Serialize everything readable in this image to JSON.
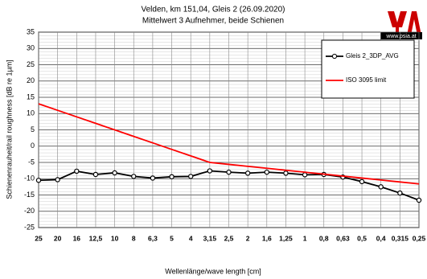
{
  "chart_data": {
    "type": "line",
    "title": "Velden, km 151,04, Gleis 2 (26.09.2020)",
    "subtitle": "Mittelwert 3 Aufnehmer, beide Schienen",
    "logo_text": "www.psia.at",
    "x_label": "Wellenlänge/wave length [cm]",
    "y_label": "Schienenrauheit/rail roughness [dB re 1µm]",
    "categories": [
      "25",
      "20",
      "16",
      "12,5",
      "10",
      "8",
      "6,3",
      "5",
      "4",
      "3,15",
      "2,5",
      "2",
      "1,6",
      "1,25",
      "1",
      "0,8",
      "0,63",
      "0,5",
      "0,4",
      "0,315",
      "0,25"
    ],
    "series": [
      {
        "name": "Gleis 2_3DP_AVG",
        "color": "#000000",
        "values": [
          -10.5,
          -10.3,
          -7.7,
          -8.7,
          -8.2,
          -9.3,
          -9.8,
          -9.4,
          -9.3,
          -7.6,
          -8.0,
          -8.3,
          -8.0,
          -8.3,
          -8.8,
          -8.7,
          -9.5,
          -10.9,
          -12.5,
          -14.4,
          -16.6
        ]
      },
      {
        "name": "ISO 3095 limit",
        "color": "#ff0000",
        "values": [
          13,
          11,
          9,
          7,
          5,
          3,
          1,
          -1,
          -3,
          -5,
          -5.6,
          -6.2,
          -6.8,
          -7.4,
          -8,
          -8.6,
          -9.2,
          -9.8,
          -10.4,
          -11,
          -11.6
        ]
      }
    ],
    "ylim": [
      -25,
      35
    ],
    "yticks": [
      -25,
      -20,
      -15,
      -10,
      -5,
      0,
      5,
      10,
      15,
      20,
      25,
      30,
      35
    ],
    "grid": true
  }
}
